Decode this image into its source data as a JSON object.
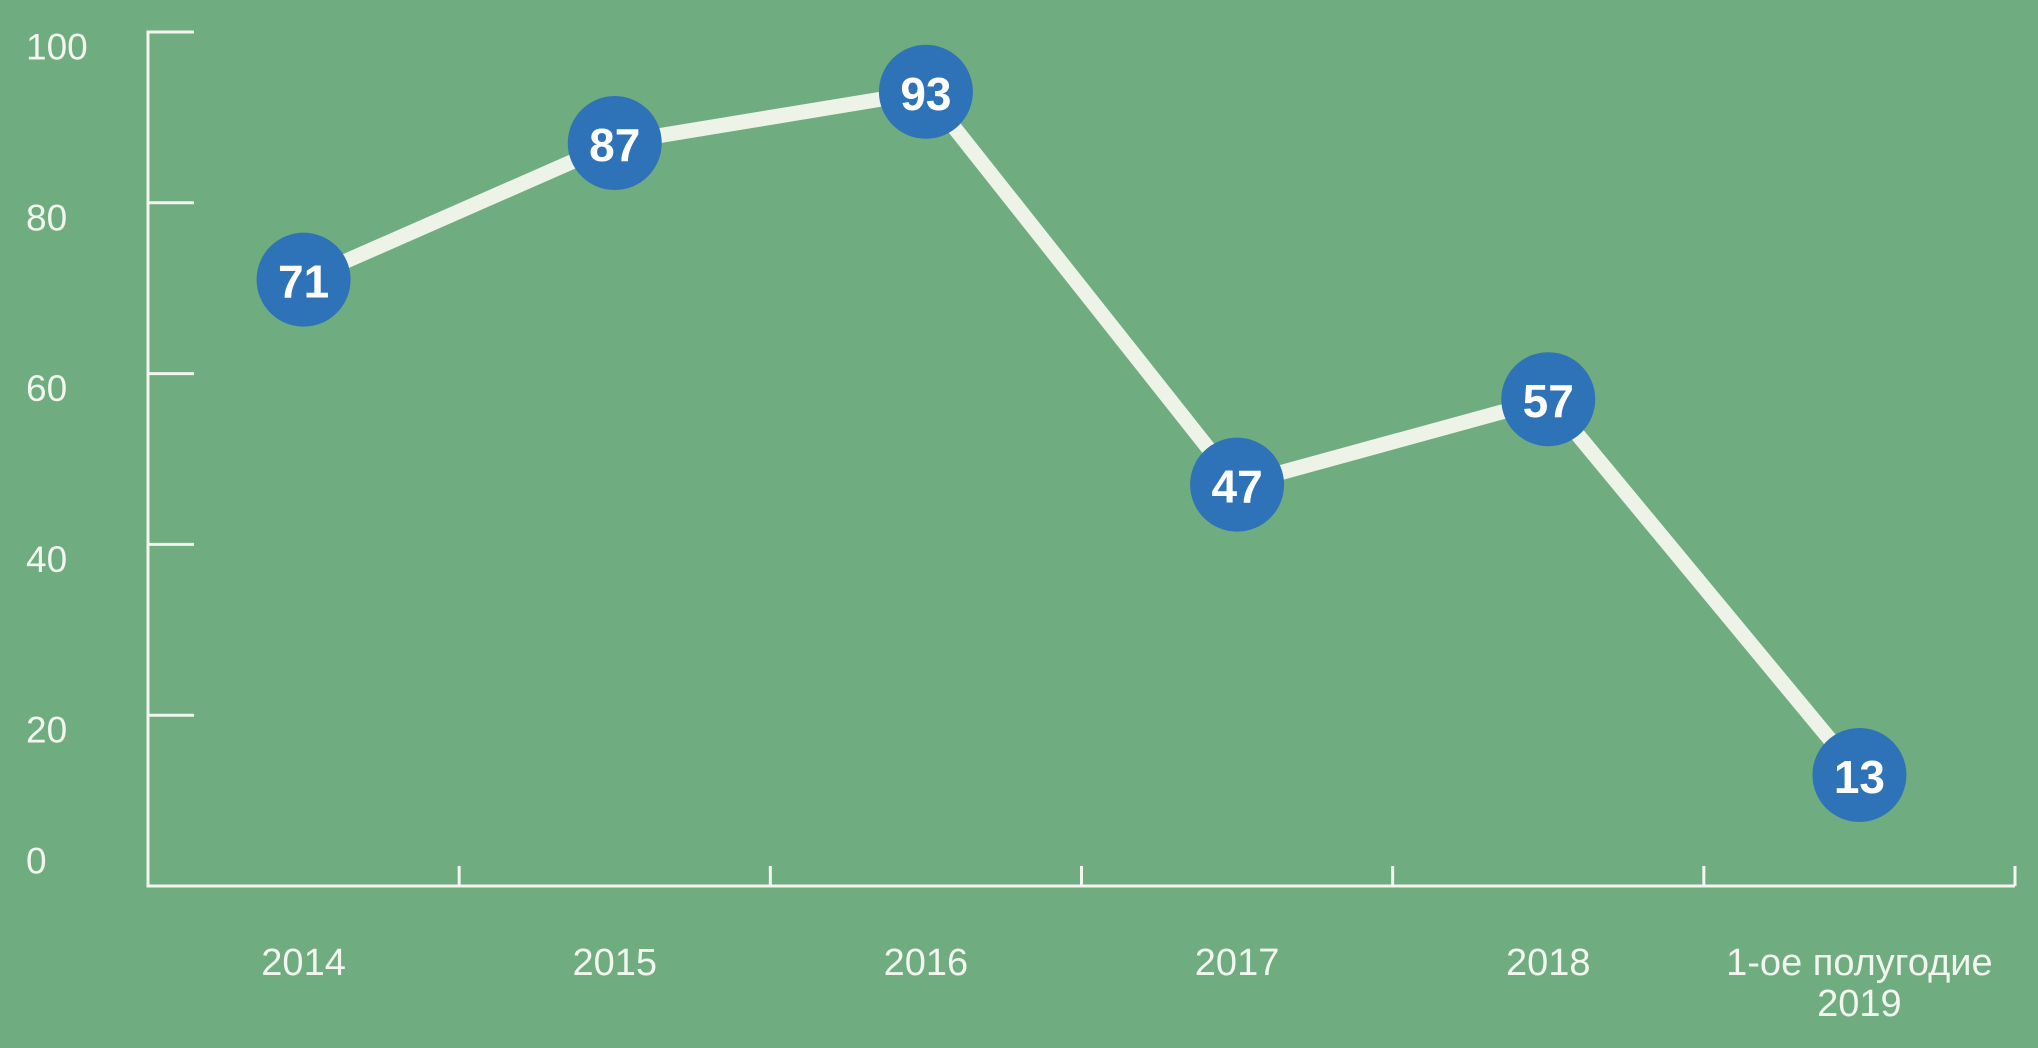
{
  "chart_data": {
    "type": "line",
    "categories": [
      "2014",
      "2015",
      "2016",
      "2017",
      "2018",
      "1-ое полугодие 2019"
    ],
    "category_label_lines": [
      [
        "2014"
      ],
      [
        "2015"
      ],
      [
        "2016"
      ],
      [
        "2017"
      ],
      [
        "2018"
      ],
      [
        "1-ое полугодие",
        "2019"
      ]
    ],
    "values": [
      71,
      87,
      93,
      47,
      57,
      13
    ],
    "point_labels": [
      "71",
      "87",
      "93",
      "47",
      "57",
      "13"
    ],
    "title": "",
    "xlabel": "",
    "ylabel": "",
    "ylim": [
      0,
      100
    ],
    "yticks": [
      0,
      20,
      40,
      60,
      80,
      100
    ],
    "grid": false,
    "legend_position": "none",
    "colors": {
      "background": "#6FAC80",
      "axis": "#F2F6EE",
      "line": "#EDF4E7",
      "marker_fill": "#2E73B7",
      "marker_text": "#FFFFFF"
    }
  }
}
